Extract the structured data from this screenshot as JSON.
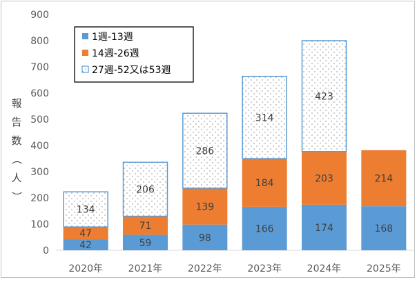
{
  "chart_data": {
    "type": "bar",
    "stacked": true,
    "categories": [
      "2020年",
      "2021年",
      "2022年",
      "2023年",
      "2024年",
      "2025年"
    ],
    "series": [
      {
        "name": "1週-13週",
        "values": [
          42,
          59,
          98,
          166,
          174,
          168
        ],
        "color": "#5b9bd5",
        "style": "solid"
      },
      {
        "name": "14週-26週",
        "values": [
          47,
          71,
          139,
          184,
          203,
          214
        ],
        "color": "#ed7d31",
        "style": "solid"
      },
      {
        "name": "27週-52又は53週",
        "values": [
          134,
          206,
          286,
          314,
          423,
          null
        ],
        "color": "#5b9bd5",
        "style": "dotted-outline"
      }
    ],
    "ylabel": "報告数（人）",
    "ylim": [
      0,
      900
    ],
    "yticks": [
      0,
      100,
      200,
      300,
      400,
      500,
      600,
      700,
      800,
      900
    ],
    "grid": false,
    "legend": "top-left"
  }
}
